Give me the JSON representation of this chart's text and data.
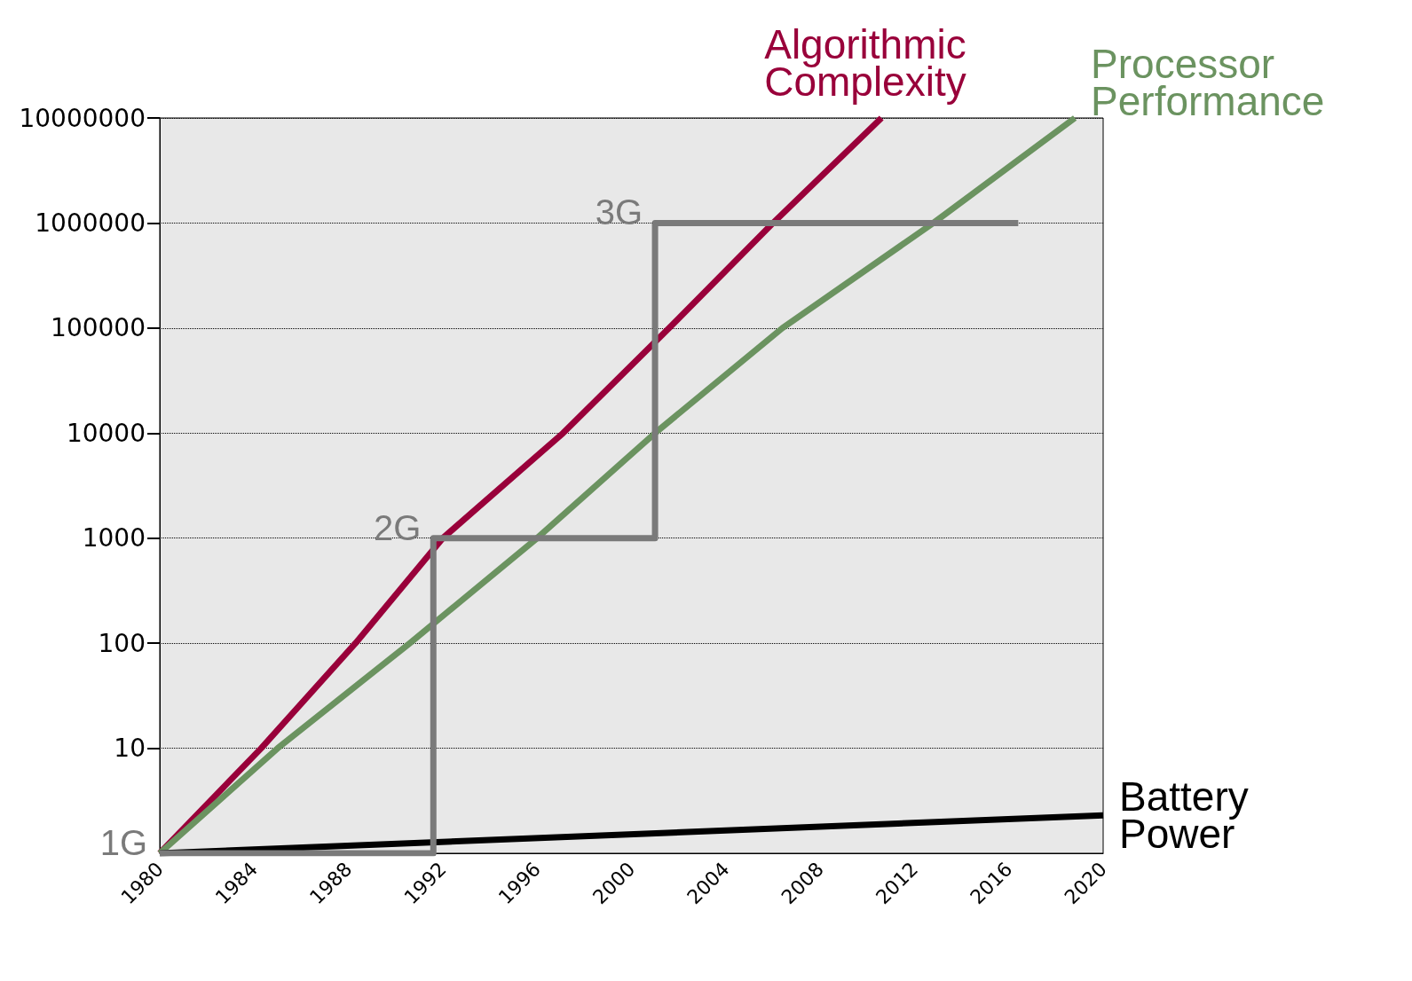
{
  "chart_data": {
    "type": "line",
    "xlim": [
      1980,
      2020
    ],
    "xticks": [
      1980,
      1984,
      1988,
      1992,
      1996,
      2000,
      2004,
      2008,
      2012,
      2016,
      2020
    ],
    "ylim": [
      1,
      10000000
    ],
    "yticks": [
      10,
      100,
      1000,
      10000,
      100000,
      1000000,
      10000000
    ],
    "log": "y",
    "grid": "y",
    "legend": false,
    "marker": "none",
    "line_style": "solid",
    "series": [
      {
        "name": "Algorithmic Complexity",
        "color": "#99003a",
        "x": [
          1980,
          1984.3,
          1988.3,
          1992.0,
          1997.1,
          2001.6,
          2006.0,
          2010.6
        ],
        "values": [
          1,
          10,
          100,
          1000,
          10000,
          100000,
          1000000,
          10000000
        ]
      },
      {
        "name": "Processor Performance",
        "color": "#6b9360",
        "x": [
          1980,
          1985.0,
          1990.6,
          1996.0,
          2001.0,
          2006.4,
          2012.8,
          2018.8
        ],
        "values": [
          1,
          10,
          100,
          1000,
          10000,
          100000,
          1000000,
          10000000
        ]
      },
      {
        "name": "Battery Power",
        "color": "#000000",
        "x": [
          1980,
          2020
        ],
        "values": [
          1,
          2.3
        ]
      },
      {
        "type": "step",
        "color": "#7a7a7a",
        "x": [
          1980,
          1991.6,
          2001,
          2016.4
        ],
        "values": [
          1,
          1000,
          1000000,
          1000000
        ]
      }
    ],
    "annotations": [
      {
        "text": "1G",
        "x": 1980,
        "y": 1
      },
      {
        "text": "2G",
        "x": 1991.6,
        "y": 1000
      },
      {
        "text": "3G",
        "x": 2001,
        "y": 1000000
      }
    ]
  }
}
